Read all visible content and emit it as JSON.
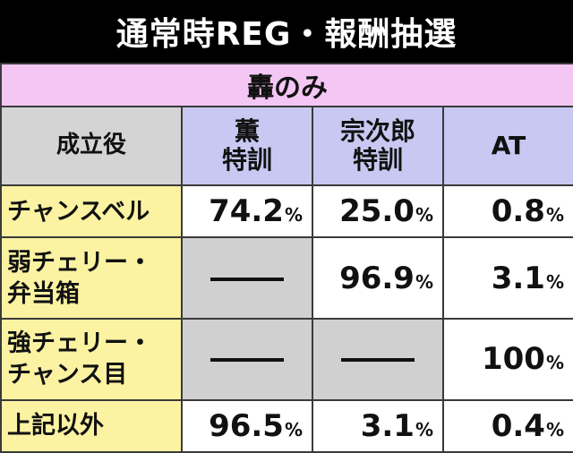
{
  "title": "通常時REG・報酬抽選",
  "subheader": "轟のみ",
  "header": {
    "row_label": "成立役",
    "columns": [
      {
        "line1": "薫",
        "line2": "特訓"
      },
      {
        "line1": "宗次郎",
        "line2": "特訓"
      },
      {
        "line1": "AT",
        "line2": ""
      }
    ]
  },
  "rows": [
    {
      "label1": "チャンスベル",
      "label2": "",
      "cells": [
        {
          "v": "74.2",
          "u": "%"
        },
        {
          "v": "25.0",
          "u": "%"
        },
        {
          "v": "0.8",
          "u": "%"
        }
      ]
    },
    {
      "label1": "弱チェリー・",
      "label2": "弁当箱",
      "cells": [
        null,
        {
          "v": "96.9",
          "u": "%"
        },
        {
          "v": "3.1",
          "u": "%"
        }
      ]
    },
    {
      "label1": "強チェリー・",
      "label2": "チャンス目",
      "cells": [
        null,
        null,
        {
          "v": "100",
          "u": "%"
        }
      ]
    },
    {
      "label1": "上記以外",
      "label2": "",
      "cells": [
        {
          "v": "96.5",
          "u": "%"
        },
        {
          "v": "3.1",
          "u": "%"
        },
        {
          "v": "0.4",
          "u": "%"
        }
      ]
    }
  ]
}
